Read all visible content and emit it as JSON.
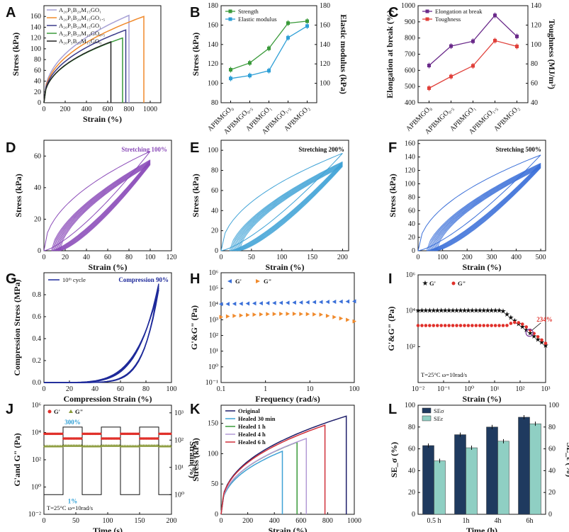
{
  "panels": {
    "A": {
      "letter": "A"
    },
    "B": {
      "letter": "B"
    },
    "C": {
      "letter": "C"
    },
    "D": {
      "letter": "D"
    },
    "E": {
      "letter": "E"
    },
    "F": {
      "letter": "F"
    },
    "G": {
      "letter": "G"
    },
    "H": {
      "letter": "H"
    },
    "I": {
      "letter": "I"
    },
    "J": {
      "letter": "J"
    },
    "K": {
      "letter": "K"
    },
    "L": {
      "letter": "L"
    }
  },
  "colors": {
    "green": "#3a9a3a",
    "blue": "#2e9fd6",
    "purple": "#6a2a8a",
    "red": "#e0403a",
    "navy": "#1e2a9a",
    "darkblue": "#1f3a5f",
    "teal": "#8fcfc3",
    "orange": "#f08a2c",
    "steelblue": "#3a6fd8"
  },
  "chart_data": [
    {
      "id": "A",
      "type": "line",
      "xlabel": "Strain (%)",
      "ylabel": "Stress (kPa)",
      "xlim": [
        0,
        1100
      ],
      "ylim": [
        0,
        180
      ],
      "xticks": [
        "0",
        "200",
        "400",
        "600",
        "800",
        "1000"
      ],
      "yticks": [
        "0",
        "20",
        "40",
        "60",
        "80",
        "100",
        "120",
        "140",
        "160"
      ],
      "series": [
        {
          "name": "A₂₀P₅B₂₀M₁₅GO₁",
          "color": "#a7a1d6",
          "break_strain": 800,
          "break_stress": 162
        },
        {
          "name": "A₂₀P₅B₂₀M₁₅GO₁.₅",
          "color": "#f08a2c",
          "break_strain": 940,
          "break_stress": 160
        },
        {
          "name": "A₂₀P₅B₂₀M₁₅GO₁",
          "color": "#3a3a8a",
          "break_strain": 770,
          "break_stress": 135
        },
        {
          "name": "A₂₀P₅B₂₀M₁₅GO₀.₅",
          "color": "#3a9a3a",
          "break_strain": 740,
          "break_stress": 120
        },
        {
          "name": "A₂₀P₅B₂₀M₁₅GO₀",
          "color": "#222222",
          "break_strain": 630,
          "break_stress": 113
        }
      ]
    },
    {
      "id": "B",
      "type": "line",
      "categories": [
        "APBMGO₀",
        "APBMGO₀.₅",
        "APBMGO₁",
        "APBMGO₁.₅",
        "APBMGO₂"
      ],
      "ylabel": "Stress (kPa)",
      "y2label": "Elastic modulus (kPa)",
      "ylim": [
        80,
        180
      ],
      "y2lim": [
        80,
        180
      ],
      "yticks": [
        "80",
        "100",
        "120",
        "140",
        "160",
        "180"
      ],
      "y2ticks": [
        "100",
        "120",
        "140",
        "160",
        "180"
      ],
      "series": [
        {
          "name": "Strength",
          "color": "#3a9a3a",
          "values": [
            114,
            121,
            136,
            162,
            164
          ]
        },
        {
          "name": "Elastic modulus",
          "color": "#2e9fd6",
          "values": [
            105,
            108,
            113,
            147,
            159
          ]
        }
      ]
    },
    {
      "id": "C",
      "type": "line",
      "categories": [
        "APBMGO₀",
        "APBMGO₀.₅",
        "APBMGO₁",
        "APBMGO₁.₅",
        "APBMGO₂"
      ],
      "ylabel": "Elongation at break (%)",
      "y2label": "Toughness (MJ/m³)",
      "ylim": [
        400,
        1000
      ],
      "y2lim": [
        40,
        140
      ],
      "yticks": [
        "400",
        "500",
        "600",
        "700",
        "800",
        "900",
        "1000"
      ],
      "y2ticks": [
        "40",
        "60",
        "80",
        "100",
        "120",
        "140"
      ],
      "series": [
        {
          "name": "Elongation at break",
          "color": "#6a2a8a",
          "values": [
            630,
            750,
            780,
            940,
            810
          ]
        },
        {
          "name": "Toughness",
          "color": "#e0403a",
          "values": [
            55,
            67,
            78,
            104,
            98
          ]
        }
      ]
    },
    {
      "id": "D",
      "type": "line",
      "annotation": "Stretching 100%",
      "xlabel": "Strain (%)",
      "ylabel": "Stress (kPa)",
      "xlim": [
        0,
        120
      ],
      "ylim": [
        0,
        70
      ],
      "xticks": [
        "0",
        "20",
        "40",
        "60",
        "80",
        "100",
        "120"
      ],
      "yticks": [
        "0",
        "20",
        "40",
        "60"
      ],
      "max_strain": 100,
      "max_stress": 63,
      "cycles": 10,
      "color": "#8a4ab8"
    },
    {
      "id": "E",
      "type": "line",
      "annotation": "Stretching 200%",
      "xlabel": "Strain (%)",
      "ylabel": "Stress (kPa)",
      "xlim": [
        0,
        210
      ],
      "ylim": [
        0,
        110
      ],
      "xticks": [
        "0",
        "50",
        "100",
        "150",
        "200"
      ],
      "yticks": [
        "0",
        "20",
        "40",
        "60",
        "80",
        "100"
      ],
      "max_strain": 200,
      "max_stress": 97,
      "cycles": 10,
      "color": "#3fa2d6"
    },
    {
      "id": "F",
      "type": "line",
      "annotation": "Stretching 500%",
      "xlabel": "Strain (%)",
      "ylabel": "Stress (kPa)",
      "xlim": [
        0,
        520
      ],
      "ylim": [
        0,
        165
      ],
      "xticks": [
        "0",
        "100",
        "200",
        "300",
        "400",
        "500"
      ],
      "yticks": [
        "0",
        "20",
        "40",
        "60",
        "80",
        "100",
        "120",
        "140",
        "160"
      ],
      "max_strain": 500,
      "max_stress": 143,
      "cycles": 10,
      "color": "#3a6fd8"
    },
    {
      "id": "G",
      "type": "line",
      "annotation": "Compression 90%",
      "legend": "10ᵗʰ cycle",
      "xlabel": "Compression Strain (%)",
      "ylabel": "Compression Stress (MPa)",
      "xlim": [
        0,
        100
      ],
      "ylim": [
        0,
        1.0
      ],
      "xticks": [
        "0",
        "20",
        "40",
        "60",
        "80",
        "100"
      ],
      "yticks": [
        "0.0",
        "0.2",
        "0.4",
        "0.6",
        "0.8"
      ],
      "max_strain": 90,
      "max_stress": 0.9,
      "color": "#1e2a9a"
    },
    {
      "id": "H",
      "type": "scatter",
      "xlabel": "Frequency (rad/s)",
      "ylabel": "G'&G\" (Pa)",
      "xscale": "log",
      "yscale": "log",
      "xlim": [
        0.1,
        100
      ],
      "ylim": [
        0.1,
        1000000
      ],
      "xticks": [
        "0.1",
        "1",
        "10",
        "100"
      ],
      "yticks": [
        "10⁻¹",
        "10⁰",
        "10¹",
        "10²",
        "10³",
        "10⁴",
        "10⁵",
        "10⁶"
      ],
      "series": [
        {
          "name": "G'",
          "color": "#3a6fd8",
          "marker": "triangle-left",
          "level": 10000,
          "level_end": 15000
        },
        {
          "name": "G\"",
          "color": "#f08a2c",
          "marker": "triangle-right",
          "level": 1500,
          "level_end": 800
        }
      ]
    },
    {
      "id": "I",
      "type": "scatter",
      "xlabel": "Strain (%)",
      "ylabel": "G'&G\" (Pa)",
      "annotation": "234%",
      "condition": "T=25°C  ω=10rad/s",
      "xscale": "log",
      "yscale": "log",
      "xlim": [
        0.01,
        1000
      ],
      "ylim": [
        1,
        1000000
      ],
      "xticks": [
        "10⁻²",
        "10⁻¹",
        "10⁰",
        "10¹",
        "10²",
        "10³"
      ],
      "yticks": [
        "10²",
        "10⁴",
        "10⁶"
      ],
      "series": [
        {
          "name": "G'",
          "color": "#111111",
          "marker": "star",
          "plateau": 10000
        },
        {
          "name": "G\"",
          "color": "#e0302a",
          "marker": "circle",
          "plateau": 1500
        }
      ]
    },
    {
      "id": "J",
      "type": "line",
      "xlabel": "Time (s)",
      "ylabel": "G'and G\" (Pa)",
      "y2label": "Strain(%)",
      "annotations": [
        "300%",
        "1%",
        "T=25°C  ω=10rad/s"
      ],
      "xlim": [
        0,
        200
      ],
      "ylim": [
        0.01,
        1000000
      ],
      "xticks": [
        "0",
        "50",
        "100",
        "150",
        "200"
      ],
      "yticks": [
        "10⁻²",
        "10⁰",
        "10²",
        "10⁴",
        "10⁶"
      ],
      "y2ticks": [
        "10⁰",
        "10¹",
        "10²",
        "10³"
      ],
      "series": [
        {
          "name": "G'",
          "color": "#e0302a",
          "level": 8000
        },
        {
          "name": "G\"",
          "color": "#8a9a3a",
          "level": 1000
        }
      ],
      "strain_steps": [
        [
          0,
          30,
          1
        ],
        [
          30,
          60,
          300
        ],
        [
          60,
          90,
          1
        ],
        [
          90,
          120,
          300
        ],
        [
          120,
          150,
          1
        ],
        [
          150,
          180,
          300
        ],
        [
          180,
          200,
          1
        ]
      ]
    },
    {
      "id": "K",
      "type": "line",
      "xlabel": "Strain (%)",
      "ylabel": "Stress (kPa)",
      "xlim": [
        0,
        1000
      ],
      "ylim": [
        0,
        180
      ],
      "xticks": [
        "0",
        "200",
        "400",
        "600",
        "800",
        "1000"
      ],
      "yticks": [
        "0",
        "50",
        "100",
        "150"
      ],
      "series": [
        {
          "name": "Original",
          "color": "#1e1e6a",
          "break_strain": 940,
          "break_stress": 162
        },
        {
          "name": "Healed 30 min",
          "color": "#3fa2d6",
          "break_strain": 460,
          "break_stress": 104
        },
        {
          "name": "Healed 1 h",
          "color": "#3a9a3a",
          "break_strain": 570,
          "break_stress": 119
        },
        {
          "name": "Healed 4 h",
          "color": "#b29ad6",
          "break_strain": 640,
          "break_stress": 125
        },
        {
          "name": "Healed 6 h",
          "color": "#d0303a",
          "break_strain": 780,
          "break_stress": 147
        }
      ]
    },
    {
      "id": "L",
      "type": "bar",
      "categories": [
        "0.5 h",
        "1h",
        "4h",
        "6h"
      ],
      "xlabel": "Time (h)",
      "ylabel": "SE_σ (%)",
      "y2label": "SE_ε (%)",
      "ylim": [
        0,
        100
      ],
      "yticks": [
        "0",
        "20",
        "40",
        "60",
        "80",
        "100"
      ],
      "series": [
        {
          "name": "SEσ",
          "color": "#1f3a5f",
          "values": [
            63,
            73,
            80,
            89
          ]
        },
        {
          "name": "SEε",
          "color": "#8fcfc3",
          "values": [
            49,
            61,
            67,
            83
          ]
        }
      ]
    }
  ]
}
